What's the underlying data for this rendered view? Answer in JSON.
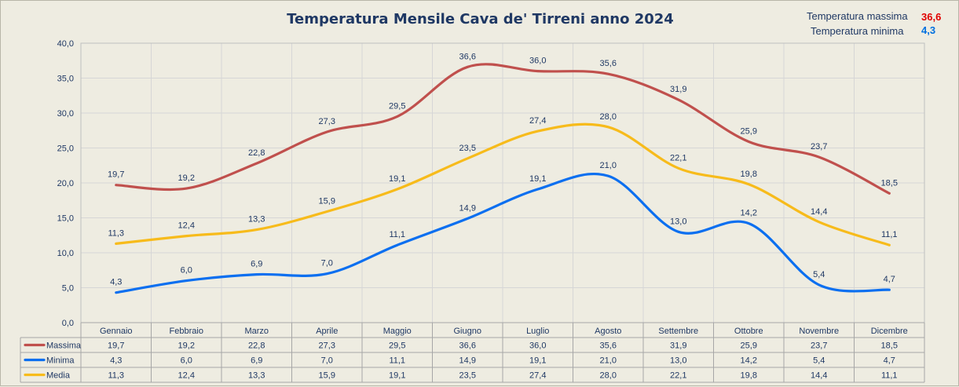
{
  "title": "Temperatura Mensile Cava de' Tirreni anno 2024",
  "summary": {
    "max_label": "Temperatura massima",
    "max_value": "36,6",
    "max_color": "#e00000",
    "min_label": "Temperatura minima",
    "min_value": "4,3",
    "min_color": "#0070e0"
  },
  "chart_data": {
    "type": "line",
    "categories": [
      "Gennaio",
      "Febbraio",
      "Marzo",
      "Aprile",
      "Maggio",
      "Giugno",
      "Luglio",
      "Agosto",
      "Settembre",
      "Ottobre",
      "Novembre",
      "Dicembre"
    ],
    "ylim": [
      0,
      40
    ],
    "yticks": [
      "0,0",
      "5,0",
      "10,0",
      "15,0",
      "20,0",
      "25,0",
      "30,0",
      "35,0",
      "40,0"
    ],
    "grid": true,
    "legend": "bottom-table",
    "series": [
      {
        "name": "Massima",
        "color": "#c0504d",
        "values": [
          19.7,
          19.2,
          22.8,
          27.3,
          29.5,
          36.6,
          36.0,
          35.6,
          31.9,
          25.9,
          23.7,
          18.5
        ],
        "labels": [
          "19,7",
          "19,2",
          "22,8",
          "27,3",
          "29,5",
          "36,6",
          "36,0",
          "35,6",
          "31,9",
          "25,9",
          "23,7",
          "18,5"
        ]
      },
      {
        "name": "Minima",
        "color": "#0b6ff0",
        "values": [
          4.3,
          6.0,
          6.9,
          7.0,
          11.1,
          14.9,
          19.1,
          21.0,
          13.0,
          14.2,
          5.4,
          4.7
        ],
        "labels": [
          "4,3",
          "6,0",
          "6,9",
          "7,0",
          "11,1",
          "14,9",
          "19,1",
          "21,0",
          "13,0",
          "14,2",
          "5,4",
          "4,7"
        ]
      },
      {
        "name": "Media",
        "color": "#f7bb1b",
        "values": [
          11.3,
          12.4,
          13.3,
          15.9,
          19.1,
          23.5,
          27.4,
          28.0,
          22.1,
          19.8,
          14.4,
          11.1
        ],
        "labels": [
          "11,3",
          "12,4",
          "13,3",
          "15,9",
          "19,1",
          "23,5",
          "27,4",
          "28,0",
          "22,1",
          "19,8",
          "14,4",
          "11,1"
        ]
      }
    ]
  }
}
